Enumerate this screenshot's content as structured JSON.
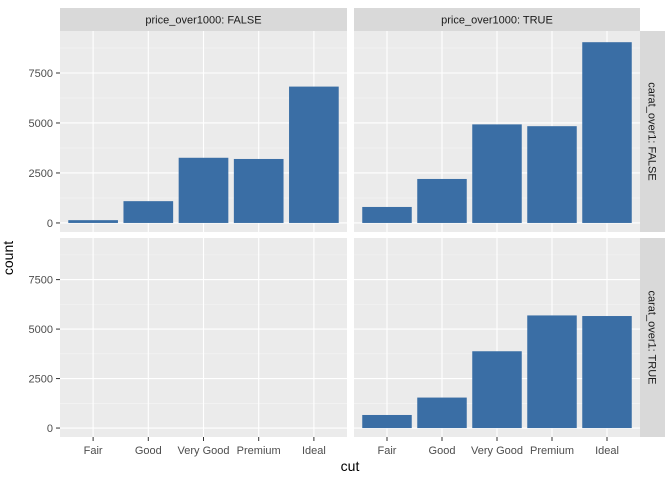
{
  "chart_data": {
    "type": "bar",
    "xlabel": "cut",
    "ylabel": "count",
    "ylim": [
      0,
      9400
    ],
    "y_ticks": [
      0,
      2500,
      5000,
      7500
    ],
    "y_tick_labels": [
      "0",
      "2500",
      "5000",
      "7500"
    ],
    "categories": [
      "Fair",
      "Good",
      "Very Good",
      "Premium",
      "Ideal"
    ],
    "bar_color": "#3a6ea5",
    "facet_cols_var": "price_over1000",
    "facet_rows_var": "carat_over1",
    "col_strips": [
      "price_over1000: FALSE",
      "price_over1000: TRUE"
    ],
    "row_strips": [
      "carat_over1: FALSE",
      "carat_over1: TRUE"
    ],
    "panels": [
      {
        "col": "price_over1000: FALSE",
        "row": "carat_over1: FALSE",
        "values": [
          140,
          1090,
          3260,
          3200,
          6820
        ]
      },
      {
        "col": "price_over1000: TRUE",
        "row": "carat_over1: FALSE",
        "values": [
          800,
          2200,
          4930,
          4840,
          9040
        ]
      },
      {
        "col": "price_over1000: FALSE",
        "row": "carat_over1: TRUE",
        "values": [
          0,
          0,
          0,
          0,
          0
        ]
      },
      {
        "col": "price_over1000: TRUE",
        "row": "carat_over1: TRUE",
        "values": [
          660,
          1540,
          3880,
          5690,
          5660
        ]
      }
    ],
    "grid": true,
    "legend": "none"
  }
}
